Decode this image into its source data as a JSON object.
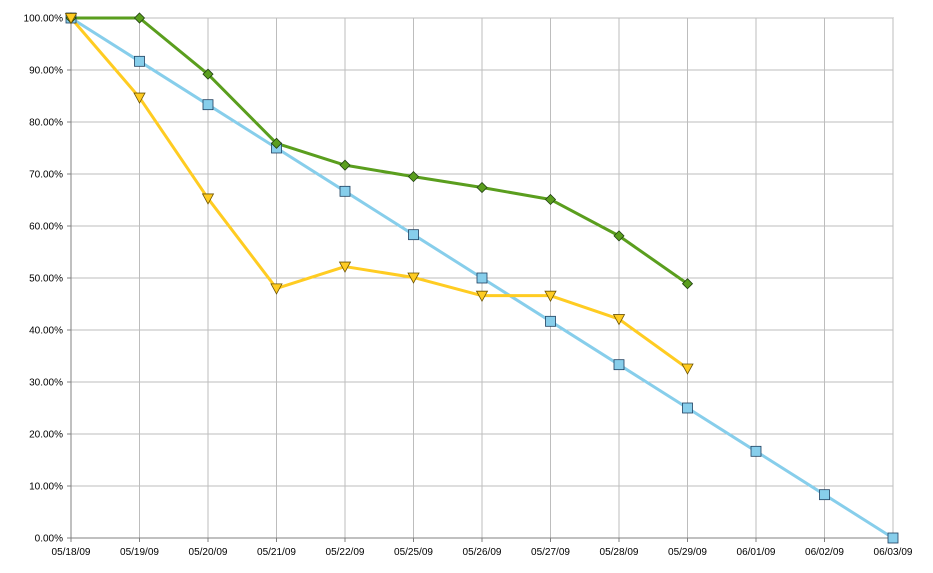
{
  "chart_data": {
    "type": "line",
    "title": "",
    "xlabel": "",
    "ylabel": "",
    "categories": [
      "05/18/09",
      "05/19/09",
      "05/20/09",
      "05/21/09",
      "05/22/09",
      "05/25/09",
      "05/26/09",
      "05/27/09",
      "05/28/09",
      "05/29/09",
      "06/01/09",
      "06/02/09",
      "06/03/09"
    ],
    "y_tick_labels": [
      "0.00%",
      "10.00%",
      "20.00%",
      "30.00%",
      "40.00%",
      "50.00%",
      "60.00%",
      "70.00%",
      "80.00%",
      "90.00%",
      "100.00%"
    ],
    "ylim": [
      0,
      100
    ],
    "y_unit": "percent",
    "grid": true,
    "legend": "none",
    "series": [
      {
        "color": "#87ceeb",
        "marker": "square",
        "values": [
          100,
          91.67,
          83.33,
          75,
          66.67,
          58.33,
          50,
          41.67,
          33.33,
          25,
          16.67,
          8.33,
          0
        ]
      },
      {
        "color": "#5a9e1e",
        "marker": "diamond",
        "values": [
          100,
          100,
          89.2,
          75.9,
          71.7,
          69.5,
          67.4,
          65.1,
          58.1,
          48.9,
          null,
          null,
          null
        ]
      },
      {
        "color": "#ffcc22",
        "marker": "triangle-down",
        "values": [
          100,
          84.7,
          65.3,
          48,
          52.2,
          50.1,
          46.6,
          46.6,
          42.1,
          32.6,
          null,
          null,
          null
        ]
      }
    ]
  }
}
